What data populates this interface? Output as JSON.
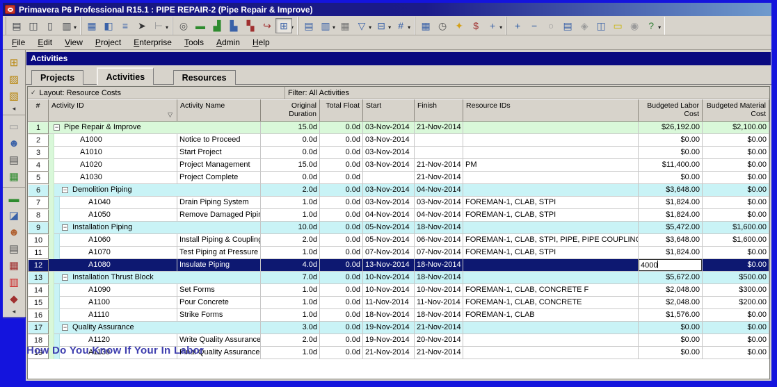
{
  "window": {
    "title": "Primavera P6 Professional R15.1 : PIPE REPAIR-2 (Pipe Repair & Improve)"
  },
  "menu": {
    "items": [
      "File",
      "Edit",
      "View",
      "Project",
      "Enterprise",
      "Tools",
      "Admin",
      "Help"
    ]
  },
  "toolbar": {
    "groups": [
      [
        {
          "name": "print",
          "glyph": "▤",
          "color": "#44484e"
        },
        {
          "name": "print-preview",
          "glyph": "◫",
          "color": "#44484e"
        },
        {
          "name": "page-setup",
          "glyph": "▯",
          "color": "#44484e"
        },
        {
          "name": "print-setup",
          "glyph": "▥",
          "color": "#44484e",
          "dropdown": true
        }
      ],
      [
        {
          "name": "table-view",
          "glyph": "▦",
          "color": "#3a62a8"
        },
        {
          "name": "layout-view",
          "glyph": "◧",
          "color": "#3a62a8"
        },
        {
          "name": "group-band",
          "glyph": "≡",
          "color": "#3a62a8"
        },
        {
          "name": "select-arrow",
          "glyph": "➤",
          "color": "#333333"
        },
        {
          "name": "trace-logic",
          "glyph": "⊢",
          "color": "#9a9a9a",
          "dropdown": true
        }
      ],
      [
        {
          "name": "find",
          "glyph": "◎",
          "color": "#555555"
        },
        {
          "name": "gantt-chart",
          "glyph": "▬",
          "color": "#2e8b2e"
        },
        {
          "name": "resource-usage-spreadsheet",
          "glyph": "▟",
          "color": "#2e8b2e"
        },
        {
          "name": "activity-usage-profile",
          "glyph": "▙",
          "color": "#3a62a8"
        },
        {
          "name": "resource-usage-profile",
          "glyph": "▚",
          "color": "#a03030"
        },
        {
          "name": "relationship-lines",
          "glyph": "↪",
          "color": "#a03030"
        },
        {
          "name": "activity-network",
          "glyph": "⊞",
          "color": "#3a62a8",
          "dropdown": true,
          "pressed": true
        }
      ],
      [
        {
          "name": "bars-settings",
          "glyph": "▤",
          "color": "#3a62a8"
        },
        {
          "name": "columns",
          "glyph": "▥",
          "color": "#3a62a8",
          "dropdown": true
        },
        {
          "name": "table-font",
          "glyph": "▦",
          "color": "#777777"
        },
        {
          "name": "filter",
          "glyph": "▽",
          "color": "#3a62a8",
          "dropdown": true
        },
        {
          "name": "group-and-sort",
          "glyph": "⊟",
          "color": "#3a62a8",
          "dropdown": true
        },
        {
          "name": "line-numbers",
          "glyph": "#",
          "color": "#3a62a8",
          "dropdown": true
        }
      ],
      [
        {
          "name": "resource-spreadsheet",
          "glyph": "▦",
          "color": "#3a62a8"
        },
        {
          "name": "schedule",
          "glyph": "◷",
          "color": "#555555"
        },
        {
          "name": "global-change",
          "glyph": "✦",
          "color": "#d4a017"
        },
        {
          "name": "costs",
          "glyph": "$",
          "color": "#a03030"
        },
        {
          "name": "assign-resources",
          "glyph": "+",
          "color": "#3a62a8",
          "dropdown": true
        }
      ],
      [
        {
          "name": "zoom-in",
          "glyph": "+",
          "color": "#1a4fa0"
        },
        {
          "name": "zoom-out",
          "glyph": "−",
          "color": "#1a4fa0"
        },
        {
          "name": "zoom-to-fit",
          "glyph": "○",
          "color": "#9a9a9a"
        },
        {
          "name": "horizontal-split",
          "glyph": "▤",
          "color": "#3a62a8"
        },
        {
          "name": "collapse-all",
          "glyph": "◈",
          "color": "#9a9a9a"
        },
        {
          "name": "vertical-split",
          "glyph": "◫",
          "color": "#3a62a8"
        },
        {
          "name": "notebook-topics",
          "glyph": "▭",
          "color": "#c8b400"
        },
        {
          "name": "progress-spotlight",
          "glyph": "◉",
          "color": "#9a9a9a"
        },
        {
          "name": "help",
          "glyph": "?",
          "color": "#2e7d32",
          "dropdown": true
        }
      ]
    ]
  },
  "sidebar": {
    "groups": [
      [
        {
          "name": "new-project",
          "glyph": "⊞",
          "color": "#b8860b"
        },
        {
          "name": "open-project",
          "glyph": "▨",
          "color": "#b8860b"
        },
        {
          "name": "import-project",
          "glyph": "▧",
          "color": "#b8860b"
        },
        {
          "name": "collapse-bar-1",
          "glyph": "◂",
          "color": "#333333",
          "small": true
        }
      ],
      [
        {
          "name": "projects-window",
          "glyph": "▭",
          "color": "#9a9a9a"
        },
        {
          "name": "resources-window",
          "glyph": "☻",
          "color": "#3a62a8"
        },
        {
          "name": "reports-window",
          "glyph": "▤",
          "color": "#555555"
        },
        {
          "name": "tracking-window",
          "glyph": "▦",
          "color": "#2e8b2e"
        }
      ],
      [
        {
          "name": "wbs-window",
          "glyph": "▬",
          "color": "#2e8b2e"
        },
        {
          "name": "activities-window",
          "glyph": "◪",
          "color": "#3a62a8"
        },
        {
          "name": "resource-assignments-window",
          "glyph": "☻",
          "color": "#b06030"
        },
        {
          "name": "wps-and-docs-window",
          "glyph": "▤",
          "color": "#555555"
        },
        {
          "name": "expenses-window",
          "glyph": "▦",
          "color": "#a03030"
        },
        {
          "name": "thresholds-window",
          "glyph": "▥",
          "color": "#cc2222"
        },
        {
          "name": "risks-window",
          "glyph": "◆",
          "color": "#a03030"
        },
        {
          "name": "collapse-bar-2",
          "glyph": "◂",
          "color": "#333333",
          "small": true
        }
      ]
    ]
  },
  "page": {
    "title": "Activities"
  },
  "tabs": [
    {
      "label": "Projects",
      "active": false
    },
    {
      "label": "Activities",
      "active": true
    },
    {
      "label": "Resources",
      "active": false
    }
  ],
  "layout_bar": {
    "layout_label": "Layout: Resource Costs",
    "filter_label": "Filter: All Activities",
    "check_glyph": "✓"
  },
  "table": {
    "columns": [
      {
        "label": "#"
      },
      {
        "label": "Activity ID",
        "sorted": true
      },
      {
        "label": "Activity Name"
      },
      {
        "label": "Original Duration"
      },
      {
        "label": "Total Float"
      },
      {
        "label": "Start"
      },
      {
        "label": "Finish"
      },
      {
        "label": "Resource IDs"
      },
      {
        "label": "Budgeted Labor Cost"
      },
      {
        "label": "Budgeted Material Cost"
      }
    ],
    "rows": [
      {
        "num": 1,
        "kind": "group1",
        "label": "Pipe Repair & Improve",
        "od": "15.0d",
        "tf": "0.0d",
        "start": "03-Nov-2014",
        "finish": "21-Nov-2014",
        "res": "",
        "labor": "$26,192.00",
        "mat": "$2,100.00"
      },
      {
        "num": 2,
        "kind": "task1",
        "id": "A1000",
        "name": "Notice to Proceed",
        "od": "0.0d",
        "tf": "0.0d",
        "start": "03-Nov-2014",
        "finish": "",
        "res": "",
        "labor": "$0.00",
        "mat": "$0.00"
      },
      {
        "num": 3,
        "kind": "task1",
        "id": "A1010",
        "name": "Start Project",
        "od": "0.0d",
        "tf": "0.0d",
        "start": "03-Nov-2014",
        "finish": "",
        "res": "",
        "labor": "$0.00",
        "mat": "$0.00"
      },
      {
        "num": 4,
        "kind": "task1",
        "id": "A1020",
        "name": "Project Management",
        "od": "15.0d",
        "tf": "0.0d",
        "start": "03-Nov-2014",
        "finish": "21-Nov-2014",
        "res": "PM",
        "labor": "$11,400.00",
        "mat": "$0.00"
      },
      {
        "num": 5,
        "kind": "task1",
        "id": "A1030",
        "name": "Project Complete",
        "od": "0.0d",
        "tf": "0.0d",
        "start": "",
        "finish": "21-Nov-2014",
        "res": "",
        "labor": "$0.00",
        "mat": "$0.00"
      },
      {
        "num": 6,
        "kind": "group2",
        "label": "Demolition Piping",
        "od": "2.0d",
        "tf": "0.0d",
        "start": "03-Nov-2014",
        "finish": "04-Nov-2014",
        "res": "",
        "labor": "$3,648.00",
        "mat": "$0.00"
      },
      {
        "num": 7,
        "kind": "task2",
        "id": "A1040",
        "name": "Drain Piping System",
        "od": "1.0d",
        "tf": "0.0d",
        "start": "03-Nov-2014",
        "finish": "03-Nov-2014",
        "res": "FOREMAN-1, CLAB, STPI",
        "labor": "$1,824.00",
        "mat": "$0.00"
      },
      {
        "num": 8,
        "kind": "task2",
        "id": "A1050",
        "name": "Remove Damaged Pipir",
        "od": "1.0d",
        "tf": "0.0d",
        "start": "04-Nov-2014",
        "finish": "04-Nov-2014",
        "res": "FOREMAN-1, CLAB, STPI",
        "labor": "$1,824.00",
        "mat": "$0.00"
      },
      {
        "num": 9,
        "kind": "group2",
        "label": "Installation Piping",
        "od": "10.0d",
        "tf": "0.0d",
        "start": "05-Nov-2014",
        "finish": "18-Nov-2014",
        "res": "",
        "labor": "$5,472.00",
        "mat": "$1,600.00"
      },
      {
        "num": 10,
        "kind": "task2",
        "id": "A1060",
        "name": "Install Piping & Coupling:",
        "od": "2.0d",
        "tf": "0.0d",
        "start": "05-Nov-2014",
        "finish": "06-Nov-2014",
        "res": "FOREMAN-1, CLAB, STPI, PIPE, PIPE COUPLING",
        "labor": "$3,648.00",
        "mat": "$1,600.00"
      },
      {
        "num": 11,
        "kind": "task2",
        "id": "A1070",
        "name": "Test Piping at Pressure",
        "od": "1.0d",
        "tf": "0.0d",
        "start": "07-Nov-2014",
        "finish": "07-Nov-2014",
        "res": "FOREMAN-1, CLAB, STPI",
        "labor": "$1,824.00",
        "mat": "$0.00"
      },
      {
        "num": 12,
        "kind": "task2",
        "id": "A1080",
        "name": "Insulate Piping",
        "od": "4.0d",
        "tf": "0.0d",
        "start": "13-Nov-2014",
        "finish": "18-Nov-2014",
        "res": "",
        "labor": "",
        "mat": "$0.00",
        "selected": true,
        "editing_labor": true
      },
      {
        "num": 13,
        "kind": "group2",
        "label": "Installation Thrust Block",
        "od": "7.0d",
        "tf": "0.0d",
        "start": "10-Nov-2014",
        "finish": "18-Nov-2014",
        "res": "",
        "labor": "$5,672.00",
        "mat": "$500.00"
      },
      {
        "num": 14,
        "kind": "task2",
        "id": "A1090",
        "name": "Set Forms",
        "od": "1.0d",
        "tf": "0.0d",
        "start": "10-Nov-2014",
        "finish": "10-Nov-2014",
        "res": "FOREMAN-1, CLAB, CONCRETE F",
        "labor": "$2,048.00",
        "mat": "$300.00"
      },
      {
        "num": 15,
        "kind": "task2",
        "id": "A1100",
        "name": "Pour Concrete",
        "od": "1.0d",
        "tf": "0.0d",
        "start": "11-Nov-2014",
        "finish": "11-Nov-2014",
        "res": "FOREMAN-1, CLAB, CONCRETE",
        "labor": "$2,048.00",
        "mat": "$200.00"
      },
      {
        "num": 16,
        "kind": "task2",
        "id": "A1110",
        "name": "Strike Forms",
        "od": "1.0d",
        "tf": "0.0d",
        "start": "18-Nov-2014",
        "finish": "18-Nov-2014",
        "res": "FOREMAN-1, CLAB",
        "labor": "$1,576.00",
        "mat": "$0.00"
      },
      {
        "num": 17,
        "kind": "group2",
        "label": "Quality Assurance",
        "od": "3.0d",
        "tf": "0.0d",
        "start": "19-Nov-2014",
        "finish": "21-Nov-2014",
        "res": "",
        "labor": "$0.00",
        "mat": "$0.00"
      },
      {
        "num": 18,
        "kind": "task2",
        "id": "A1120",
        "name": "Write Quality Assurance",
        "od": "2.0d",
        "tf": "0.0d",
        "start": "19-Nov-2014",
        "finish": "20-Nov-2014",
        "res": "",
        "labor": "$0.00",
        "mat": "$0.00"
      },
      {
        "num": 19,
        "kind": "task2",
        "id": "A1130",
        "name": "Final Quality Assurance",
        "od": "1.0d",
        "tf": "0.0d",
        "start": "21-Nov-2014",
        "finish": "21-Nov-2014",
        "res": "",
        "labor": "$0.00",
        "mat": "$0.00"
      }
    ]
  },
  "edit_cell": {
    "value": "4000"
  },
  "watermark": {
    "text": "How Do You Know If Your In Labor"
  },
  "colors": {
    "window_frame": "#1414dd",
    "titlebar_start": "#15157c",
    "titlebar_end": "#6f9bcd",
    "section_header": "#0a0a80",
    "selection": "#0d1871",
    "group_level1_bg": "#d9f8d9",
    "group_level2_bg": "#c9f3f6",
    "toolbar_bg": "#d7d3cb",
    "watermark": "#3d3dae"
  }
}
